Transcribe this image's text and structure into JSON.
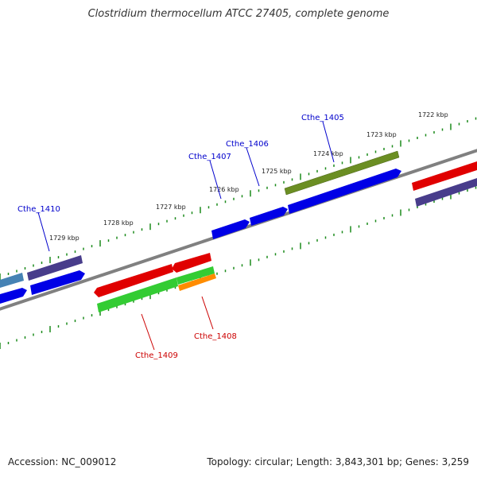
{
  "title": "Clostridium thermocellum ATCC 27405, complete genome",
  "footer": {
    "accession": "Accession: NC_009012",
    "topology": "Topology: circular; Length: 3,843,301 bp; Genes: 3,259"
  },
  "colors": {
    "backbone": "#808080",
    "tick": "#1a8a1a",
    "forward_label": "#0000cc",
    "reverse_label": "#cc0000"
  },
  "scale_labels": [
    "1722 kbp",
    "1723 kbp",
    "1724 kbp",
    "1725 kbp",
    "1726 kbp",
    "1727 kbp",
    "1728 kbp",
    "1729 kbp"
  ],
  "gene_labels": [
    {
      "text": "Cthe_1405",
      "strand": "forward"
    },
    {
      "text": "Cthe_1406",
      "strand": "forward"
    },
    {
      "text": "Cthe_1407",
      "strand": "forward"
    },
    {
      "text": "Cthe_1410",
      "strand": "forward"
    },
    {
      "text": "Cthe_1408",
      "strand": "reverse"
    },
    {
      "text": "Cthe_1409",
      "strand": "reverse"
    }
  ]
}
